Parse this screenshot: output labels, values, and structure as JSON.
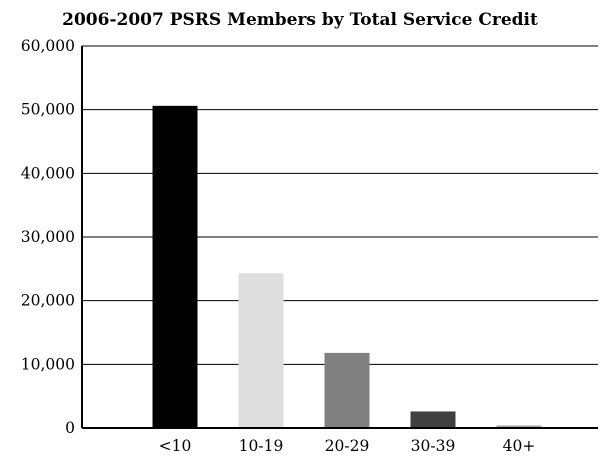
{
  "chart_data": {
    "type": "bar",
    "title": "2006-2007 PSRS Members by Total Service Credit",
    "xlabel": "",
    "ylabel": "",
    "categories": [
      "<10",
      "10-19",
      "20-29",
      "30-39",
      "40+"
    ],
    "values": [
      50600,
      24300,
      11800,
      2600,
      400
    ],
    "colors": [
      "#000000",
      "#dedede",
      "#808080",
      "#404040",
      "#a8a8a8"
    ],
    "ylim": [
      0,
      60000
    ],
    "y_ticks": [
      0,
      10000,
      20000,
      30000,
      40000,
      50000,
      60000
    ],
    "y_tick_labels": [
      "0",
      "10,000",
      "20,000",
      "30,000",
      "40,000",
      "50,000",
      "60,000"
    ],
    "grid": true,
    "legend": "none"
  }
}
